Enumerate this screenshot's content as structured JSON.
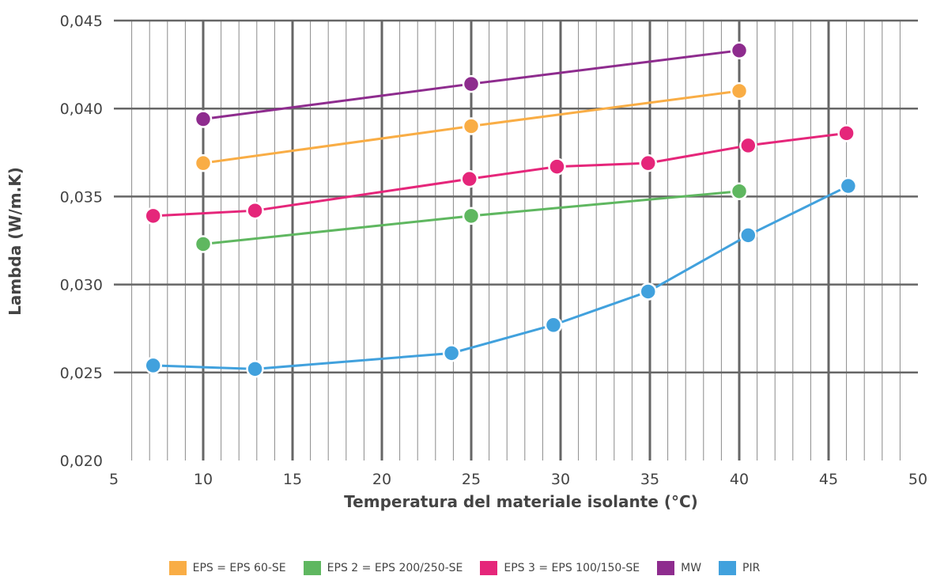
{
  "chart_data": {
    "type": "line",
    "xlabel": "Temperatura del materiale isolante (°C)",
    "ylabel": "Lambda (W/m.K)",
    "xlim": [
      5,
      50
    ],
    "ylim": [
      0.02,
      0.045
    ],
    "xticks": [
      5,
      10,
      15,
      20,
      25,
      30,
      35,
      40,
      45,
      50
    ],
    "yticks": [
      0.02,
      0.025,
      0.03,
      0.035,
      0.04,
      0.045
    ],
    "ytick_labels": [
      "0,020",
      "0,025",
      "0,030",
      "0,035",
      "0,040",
      "0,045"
    ],
    "grid": true,
    "legend_position": "bottom",
    "series": [
      {
        "name": "EPS = EPS 60-SE",
        "color": "#f9ad45",
        "x": [
          10,
          25,
          40
        ],
        "y": [
          0.0369,
          0.039,
          0.041
        ]
      },
      {
        "name": "EPS 2 = EPS 200/250-SE",
        "color": "#5fb760",
        "x": [
          10,
          25,
          40
        ],
        "y": [
          0.0323,
          0.0339,
          0.0353
        ]
      },
      {
        "name": "EPS 3 = EPS 100/150-SE",
        "color": "#e5267a",
        "x": [
          7.2,
          12.9,
          24.9,
          29.8,
          34.9,
          40.5,
          46.0
        ],
        "y": [
          0.0339,
          0.0342,
          0.036,
          0.0367,
          0.0369,
          0.0379,
          0.0386
        ]
      },
      {
        "name": "MW",
        "color": "#8e2c8e",
        "x": [
          10,
          25,
          40
        ],
        "y": [
          0.0394,
          0.0414,
          0.0433
        ]
      },
      {
        "name": "PIR",
        "color": "#41a1dd",
        "x": [
          7.2,
          12.9,
          23.9,
          29.6,
          34.9,
          40.5,
          46.1
        ],
        "y": [
          0.0254,
          0.0252,
          0.0261,
          0.0277,
          0.0296,
          0.0328,
          0.0356
        ]
      }
    ]
  }
}
